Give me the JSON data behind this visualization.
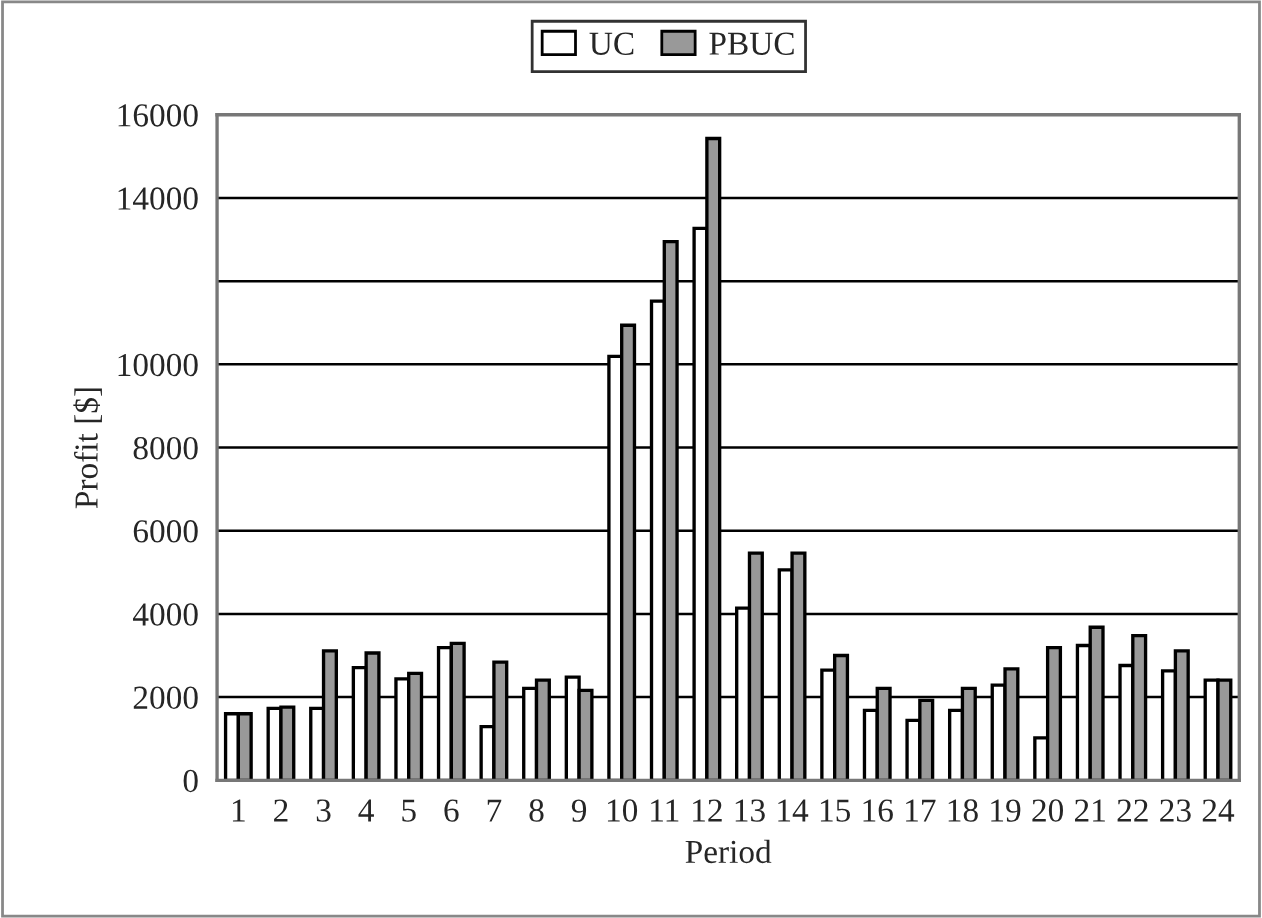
{
  "chart_data": {
    "type": "bar",
    "xlabel": "Period",
    "ylabel": "Profit [$]",
    "categories": [
      "1",
      "2",
      "3",
      "4",
      "5",
      "6",
      "7",
      "8",
      "9",
      "10",
      "11",
      "12",
      "13",
      "14",
      "15",
      "16",
      "17",
      "18",
      "19",
      "20",
      "21",
      "22",
      "23",
      "24"
    ],
    "series": [
      {
        "name": "UC",
        "color": "#ffffff",
        "values": [
          1600,
          1730,
          1730,
          2710,
          2440,
          3190,
          1290,
          2210,
          2480,
          10190,
          11520,
          13270,
          4140,
          5060,
          2650,
          1680,
          1440,
          1680,
          2290,
          1020,
          3240,
          2760,
          2630,
          2410
        ]
      },
      {
        "name": "PBUC",
        "color": "#999999",
        "values": [
          1600,
          1760,
          3110,
          3060,
          2570,
          3290,
          2840,
          2410,
          2160,
          10940,
          12950,
          15430,
          5460,
          5460,
          3000,
          2210,
          1920,
          2210,
          2680,
          3190,
          3680,
          3480,
          3110,
          2410
        ]
      }
    ],
    "ylim": [
      0,
      16000
    ],
    "yticks": [
      0,
      2000,
      4000,
      6000,
      8000,
      10000,
      {
        "value": 12000,
        "label": null
      },
      14000,
      16000
    ],
    "grid": "y",
    "legend": "top"
  }
}
